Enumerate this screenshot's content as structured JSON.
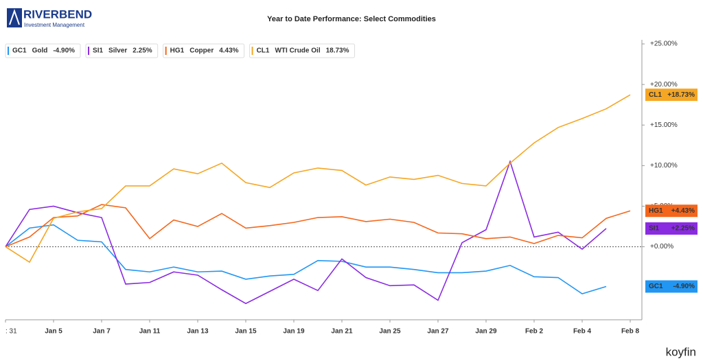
{
  "chart_data": {
    "type": "line",
    "title": "Year to Date Performance: Select Commodities",
    "brand": "RIVERBEND",
    "brand_subtitle": "Investment Management",
    "watermark": "koyfin",
    "categories": [
      ": 31",
      null,
      "Jan 5",
      null,
      "Jan 7",
      null,
      "Jan 11",
      null,
      "Jan 13",
      null,
      "Jan 15",
      null,
      "Jan 19",
      null,
      "Jan 21",
      null,
      "Jan 25",
      null,
      "Jan 27",
      null,
      "Jan 29",
      null,
      "Feb 2",
      null,
      "Feb 4",
      null,
      "Feb 8"
    ],
    "ylim": [
      -9,
      25
    ],
    "yticks": [
      {
        "value": 0,
        "label": "+0.00%"
      },
      {
        "value": 5,
        "label": "+5.00%"
      },
      {
        "value": 10,
        "label": "+10.00%"
      },
      {
        "value": 15,
        "label": "+15.00%"
      },
      {
        "value": 20,
        "label": "+20.00%"
      },
      {
        "value": 25,
        "label": "+25.00%"
      }
    ],
    "series": [
      {
        "ticker": "GC1",
        "name": "Gold",
        "legend_value": "-4.90%",
        "end_label": "-4.90%",
        "color": "#2196f3",
        "values": [
          0,
          2.3,
          2.7,
          0.8,
          0.6,
          -2.8,
          -3.1,
          -2.5,
          -3.1,
          -3.0,
          -4.0,
          -3.6,
          -3.4,
          -1.7,
          -1.8,
          -2.5,
          -2.5,
          -2.8,
          -3.2,
          -3.2,
          -3.0,
          -2.3,
          -3.7,
          -3.8,
          -5.8,
          -4.9,
          null
        ]
      },
      {
        "ticker": "SI1",
        "name": "Silver",
        "legend_value": "2.25%",
        "end_label": "+2.25%",
        "color": "#8a2be2",
        "values": [
          0,
          4.6,
          5.0,
          4.2,
          3.6,
          -4.6,
          -4.4,
          -3.1,
          -3.5,
          -5.3,
          -7.0,
          -5.5,
          -4.0,
          -5.4,
          -1.5,
          -3.8,
          -4.8,
          -4.7,
          -6.6,
          0.5,
          2.1,
          10.5,
          1.2,
          1.8,
          -0.3,
          2.25,
          null
        ]
      },
      {
        "ticker": "HG1",
        "name": "Copper",
        "legend_value": "4.43%",
        "end_label": "+4.43%",
        "color": "#f4661b",
        "values": [
          0,
          1.2,
          3.6,
          3.8,
          5.2,
          4.8,
          1.0,
          3.3,
          2.5,
          4.1,
          2.3,
          2.6,
          3.0,
          3.6,
          3.7,
          3.1,
          3.4,
          3.0,
          1.7,
          1.6,
          1.0,
          1.2,
          0.4,
          1.4,
          1.1,
          3.5,
          4.43
        ]
      },
      {
        "ticker": "CL1",
        "name": "WTI Crude Oil",
        "legend_value": "18.73%",
        "end_label": "+18.73%",
        "color": "#f5a623",
        "values": [
          0,
          -1.9,
          3.5,
          4.3,
          4.7,
          7.5,
          7.5,
          9.6,
          9.0,
          10.3,
          7.9,
          7.3,
          9.1,
          9.7,
          9.4,
          7.6,
          8.6,
          8.3,
          8.8,
          7.8,
          7.5,
          10.3,
          12.8,
          14.7,
          15.8,
          17.0,
          18.73
        ]
      }
    ],
    "zero_line": true
  }
}
